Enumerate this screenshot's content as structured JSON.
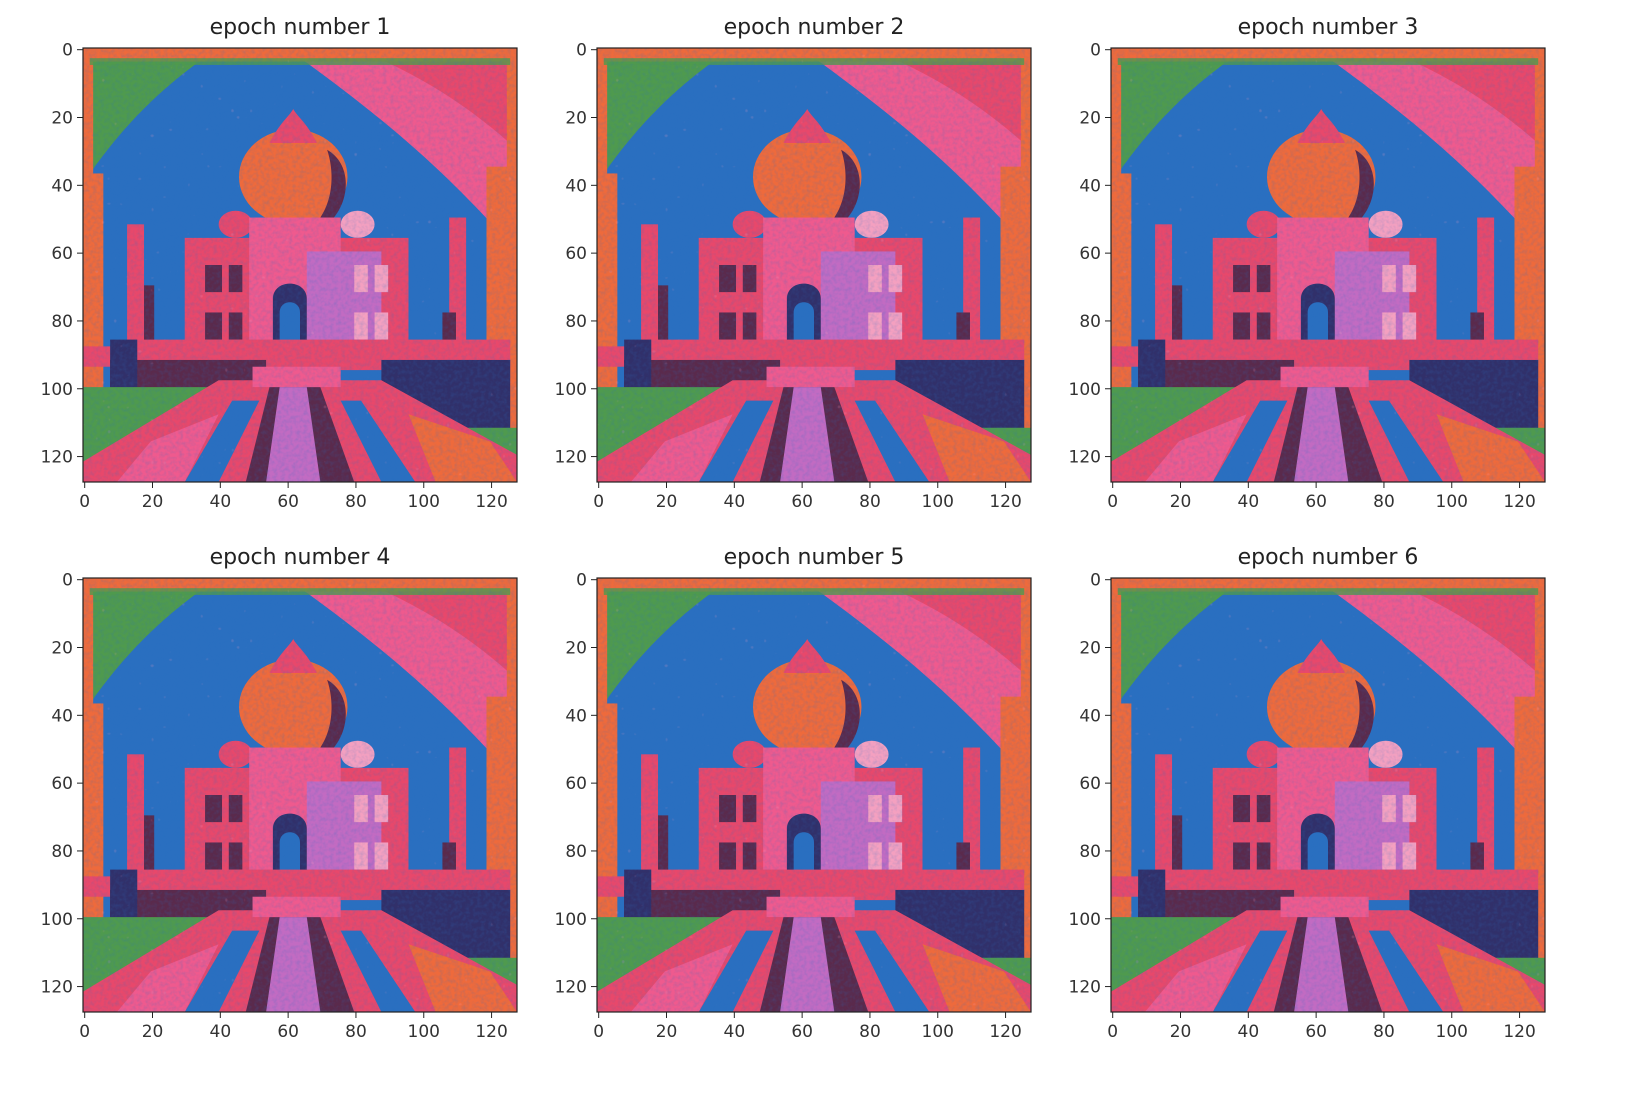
{
  "figure": {
    "panels": [
      {
        "title": "epoch number 1"
      },
      {
        "title": "epoch number 2"
      },
      {
        "title": "epoch number 3"
      },
      {
        "title": "epoch number 4"
      },
      {
        "title": "epoch number 5"
      },
      {
        "title": "epoch number 6"
      }
    ],
    "x_ticks": [
      "0",
      "20",
      "40",
      "60",
      "80",
      "100",
      "120"
    ],
    "y_ticks": [
      "0",
      "20",
      "40",
      "60",
      "80",
      "100",
      "120"
    ],
    "image_extent": [
      0,
      128
    ],
    "palette": {
      "sky_blue": "#2a6fc0",
      "green": "#4f9a4e",
      "pink": "#e8486b",
      "orange": "#ee6a3c",
      "magenta": "#ef5a8e",
      "lavender": "#c26bc2",
      "dark_plum": "#5a2a4c",
      "light_pink": "#f4a0c0",
      "navy": "#31306a"
    }
  }
}
